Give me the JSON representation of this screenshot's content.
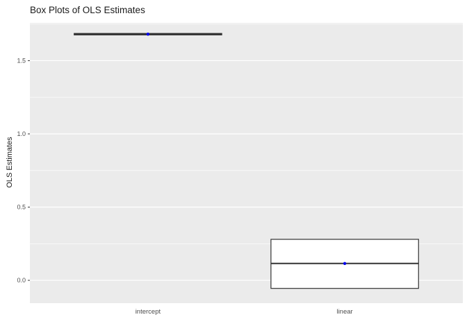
{
  "page": {
    "background": "#ffffff"
  },
  "chart_data": {
    "type": "boxplot",
    "title": "Box Plots of OLS Estimates",
    "xlabel": "",
    "ylabel": "OLS Estimates",
    "categories": [
      "intercept",
      "linear"
    ],
    "y_ticks": [
      0.0,
      0.5,
      1.0,
      1.5
    ],
    "y_minor_ticks": [
      0.25,
      0.75,
      1.25,
      1.75
    ],
    "ylim": [
      -0.156,
      1.758
    ],
    "grid": true,
    "legend": "none",
    "panel_bg": "#EBEBEB",
    "grid_color": "#FFFFFF",
    "box_stroke": "#333333",
    "point_color": "#0000EE",
    "tick_label_color": "#4D4D4D",
    "series": [
      {
        "category": "intercept",
        "lower": 1.67,
        "q1": 1.676,
        "median": 1.681,
        "q3": 1.686,
        "upper": 1.692,
        "mean": 1.681
      },
      {
        "category": "linear",
        "lower": -0.055,
        "q1": -0.055,
        "median": 0.115,
        "q3": 0.28,
        "upper": 0.28,
        "mean": 0.115
      }
    ]
  }
}
